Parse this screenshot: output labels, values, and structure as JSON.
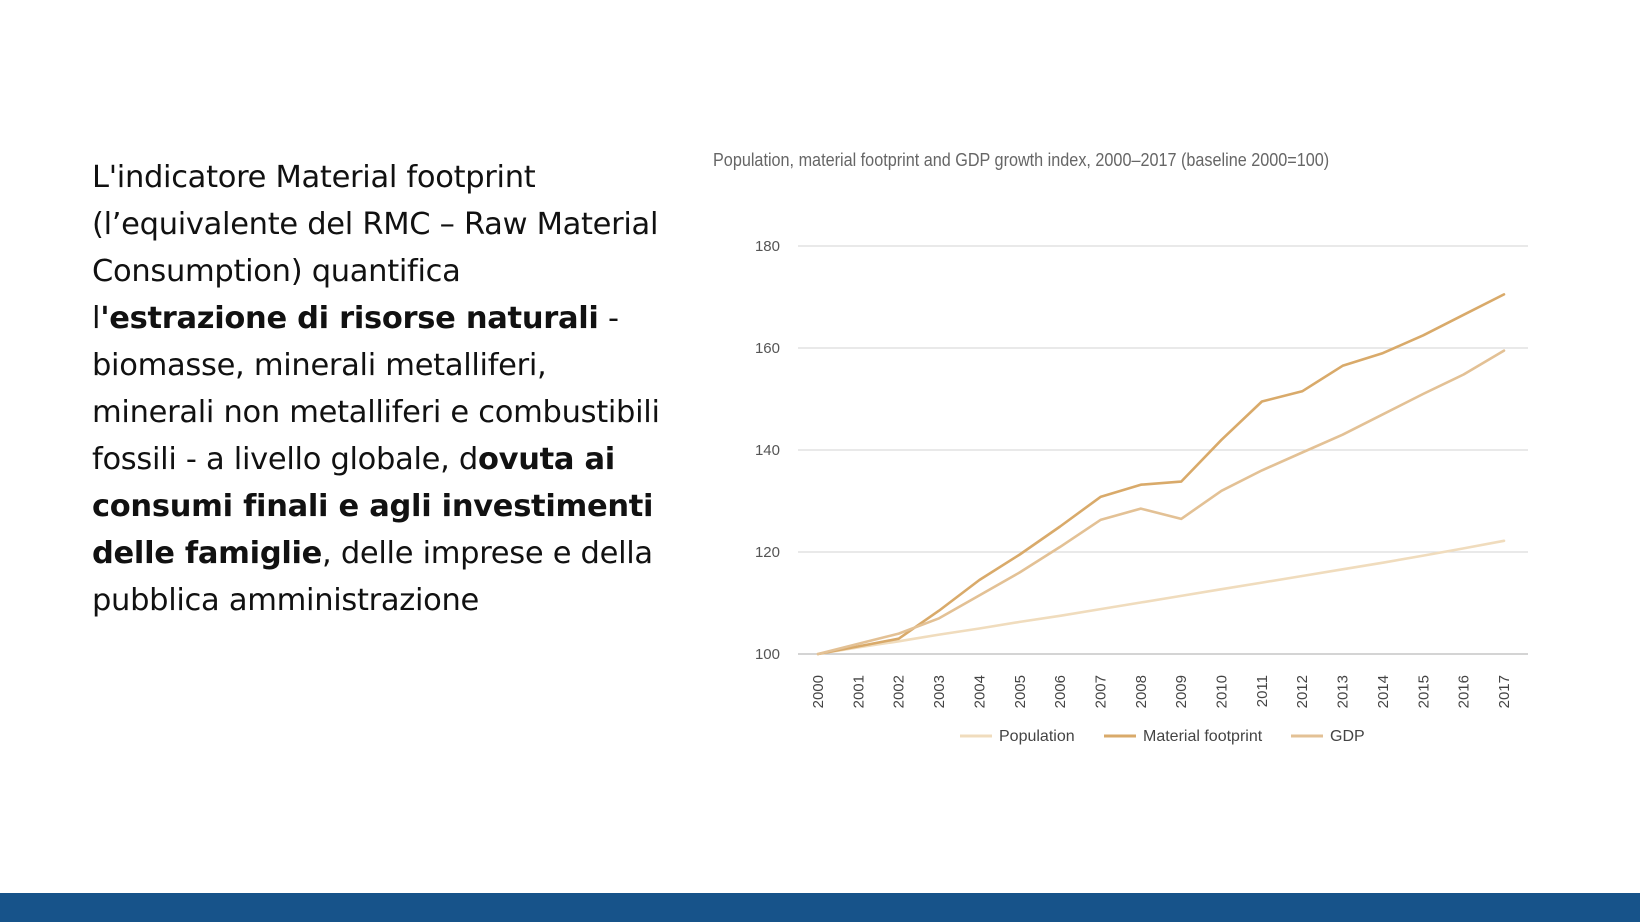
{
  "slide": {
    "text_runs": [
      {
        "text": "L'indicatore Material footprint (l’equivalente del RMC – Raw Material Consumption) quantifica l",
        "bold": false
      },
      {
        "text": "'estrazione di risorse naturali",
        "bold": true
      },
      {
        "text": " - biomasse, minerali metalliferi, minerali non metalliferi e combustibili fossili - a livello globale, d",
        "bold": false
      },
      {
        "text": "ovuta ai consumi finali e agli investimenti delle famiglie",
        "bold": true
      },
      {
        "text": ", delle imprese e della pubblica amministrazione",
        "bold": false
      }
    ],
    "footer_color": "#17538a"
  },
  "chart_data": {
    "type": "line",
    "title": "Population, material footprint and GDP growth index, 2000–2017 (baseline 2000=100)",
    "xlabel": "",
    "ylabel": "",
    "x": [
      "2000",
      "2001",
      "2002",
      "2003",
      "2004",
      "2005",
      "2006",
      "2007",
      "2008",
      "2009",
      "2010",
      "2011",
      "2012",
      "2013",
      "2014",
      "2015",
      "2016",
      "2017"
    ],
    "ylim": [
      100,
      180
    ],
    "yticks": [
      100,
      120,
      140,
      160,
      180
    ],
    "grid": true,
    "legend_position": "bottom",
    "series": [
      {
        "name": "Population",
        "color": "#f0dcbd",
        "values": [
          100,
          101.3,
          102.5,
          103.8,
          105,
          106.3,
          107.5,
          108.8,
          110.1,
          111.4,
          112.7,
          114,
          115.3,
          116.6,
          117.9,
          119.3,
          120.7,
          122.2
        ]
      },
      {
        "name": "Material footprint",
        "color": "#d9aa6a",
        "values": [
          100,
          101.5,
          103,
          108.5,
          114.5,
          119.5,
          125,
          130.8,
          133.2,
          133.8,
          142,
          149.5,
          151.5,
          156.5,
          159,
          162.5,
          166.5,
          170.5
        ]
      },
      {
        "name": "GDP",
        "color": "#e3c195",
        "values": [
          100,
          102,
          104,
          107,
          111.5,
          116,
          121,
          126.3,
          128.5,
          126.5,
          132,
          136,
          139.5,
          143,
          147,
          151,
          154.8,
          159.5
        ]
      }
    ]
  }
}
